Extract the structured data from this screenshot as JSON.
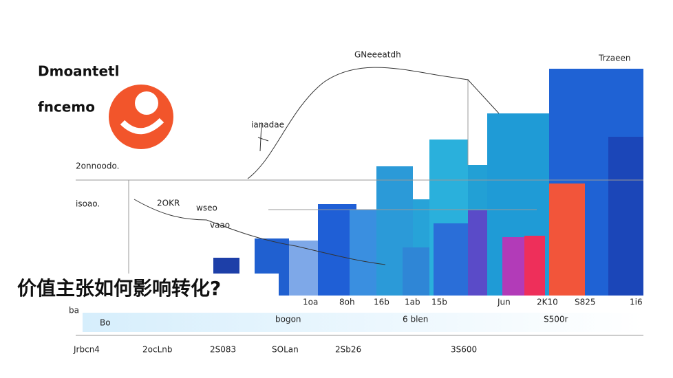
{
  "logo": {
    "line1": "Dmoantetl",
    "line2": "fncemo"
  },
  "title": "价值主张如何影响转化?",
  "annotations": [
    "GNeeeatdh",
    "Trzaeen",
    "ianadae",
    "2onnoodo.",
    "isoao.",
    "2OKR",
    "wseo",
    "vaao",
    "ba"
  ],
  "axis_labels": [
    "1oa",
    "8oh",
    "16b",
    "1ab",
    "15b",
    "Jun",
    "2K10",
    "S825",
    "1i6"
  ],
  "band_labels": [
    "Bo",
    "bogon",
    "6 blen",
    "S500r"
  ],
  "bottom_labels": [
    "Jrbcn4",
    "2ocLnb",
    "2S083",
    "SOLan",
    "2Sb26",
    "3S600"
  ]
}
